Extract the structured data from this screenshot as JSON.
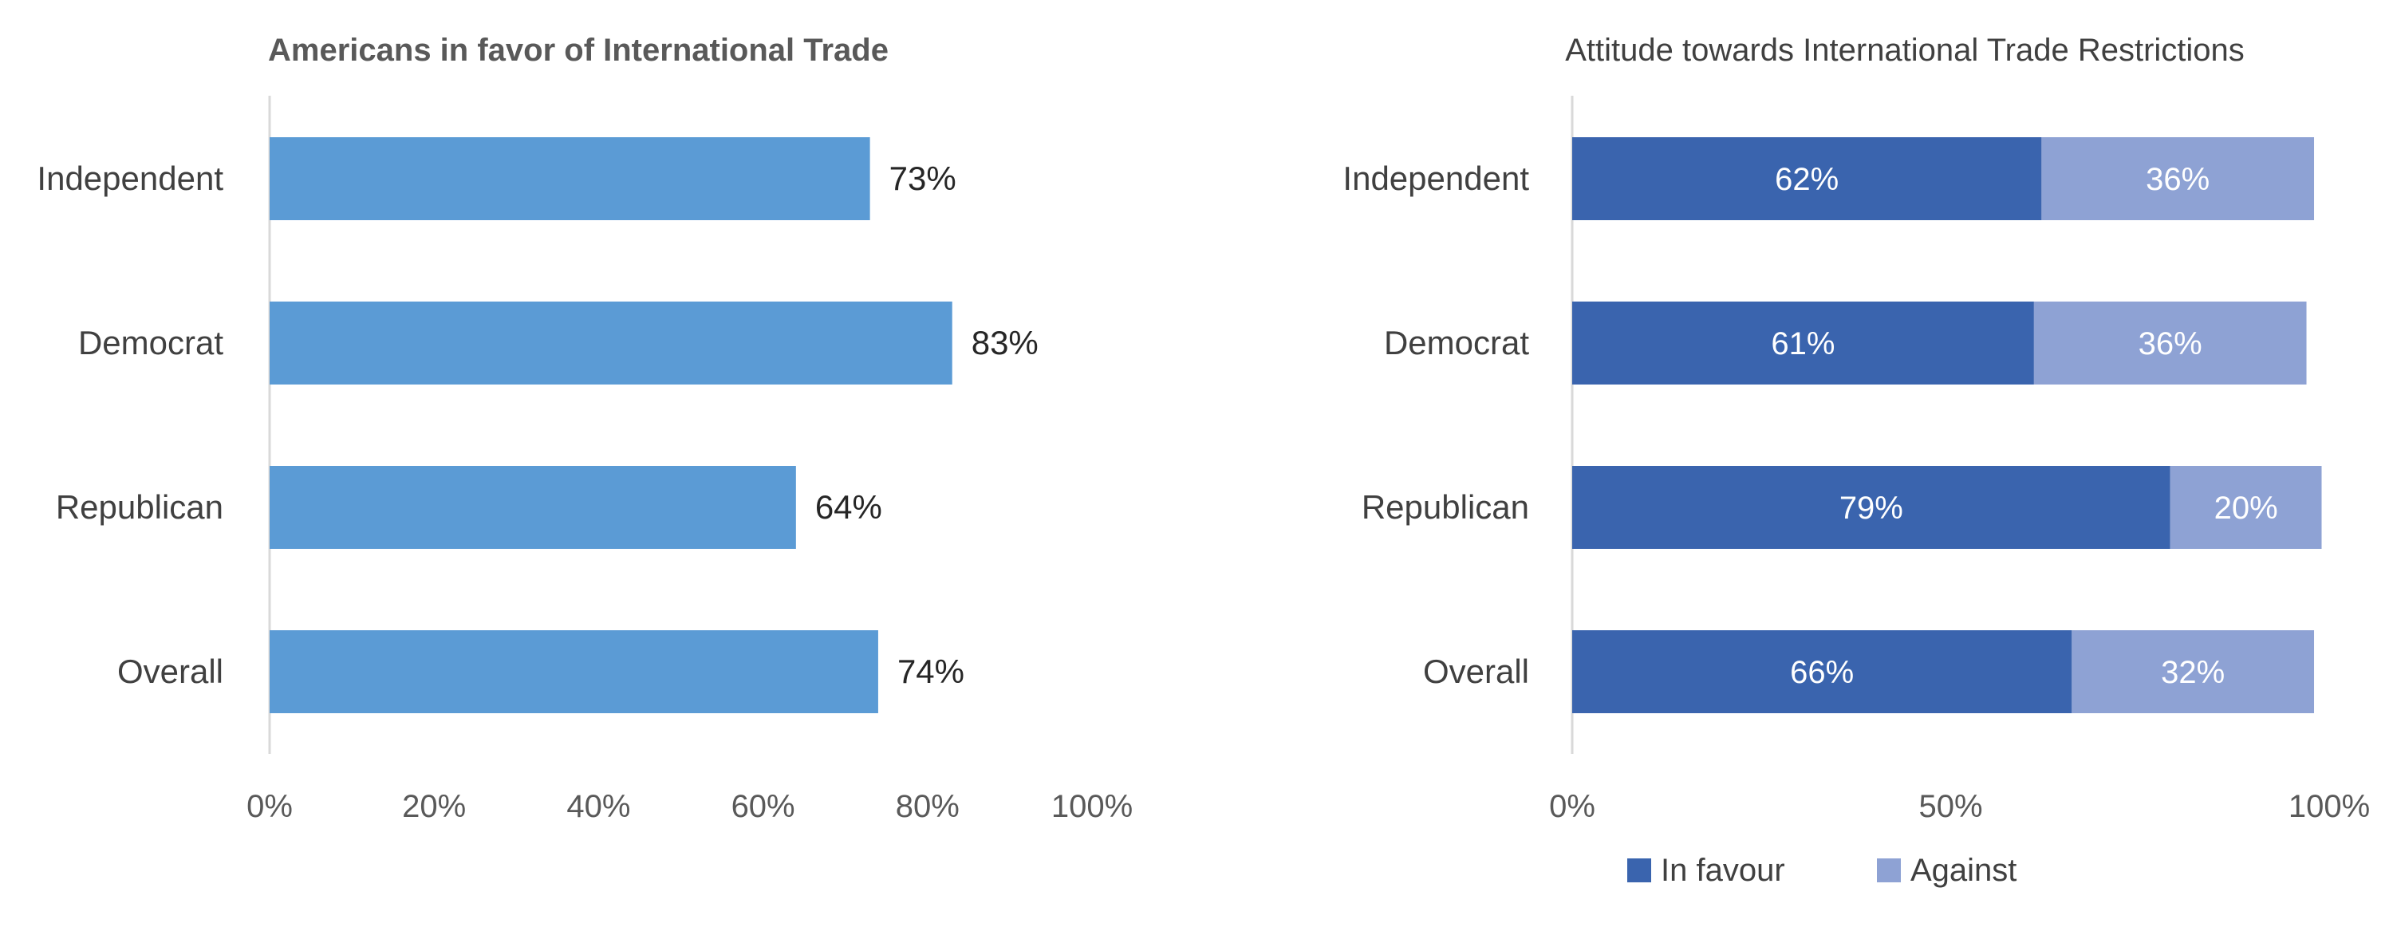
{
  "chart_data": [
    {
      "type": "bar",
      "orientation": "horizontal",
      "title": "Americans in favor of International Trade",
      "categories": [
        "Independent",
        "Democrat",
        "Republican",
        "Overall"
      ],
      "values": [
        73,
        83,
        64,
        74
      ],
      "value_labels": [
        "73%",
        "83%",
        "64%",
        "74%"
      ],
      "xlim": [
        0,
        100
      ],
      "xticks": [
        "0%",
        "20%",
        "40%",
        "60%",
        "80%",
        "100%"
      ],
      "colors": {
        "bar": "#5B9BD5"
      },
      "grid": false
    },
    {
      "type": "bar",
      "orientation": "horizontal",
      "stacked": true,
      "title": "Attitude towards International Trade Restrictions",
      "categories": [
        "Independent",
        "Democrat",
        "Republican",
        "Overall"
      ],
      "series": [
        {
          "name": "In favour",
          "values": [
            62,
            61,
            79,
            66
          ],
          "labels": [
            "62%",
            "61%",
            "79%",
            "66%"
          ],
          "color": "#3A64AE"
        },
        {
          "name": "Against",
          "values": [
            36,
            36,
            20,
            32
          ],
          "labels": [
            "36%",
            "36%",
            "20%",
            "32%"
          ],
          "color": "#8EA2D4"
        }
      ],
      "xlim": [
        0,
        100
      ],
      "xticks": [
        "0%",
        "50%",
        "100%"
      ],
      "legend": "bottom",
      "grid": false
    }
  ]
}
